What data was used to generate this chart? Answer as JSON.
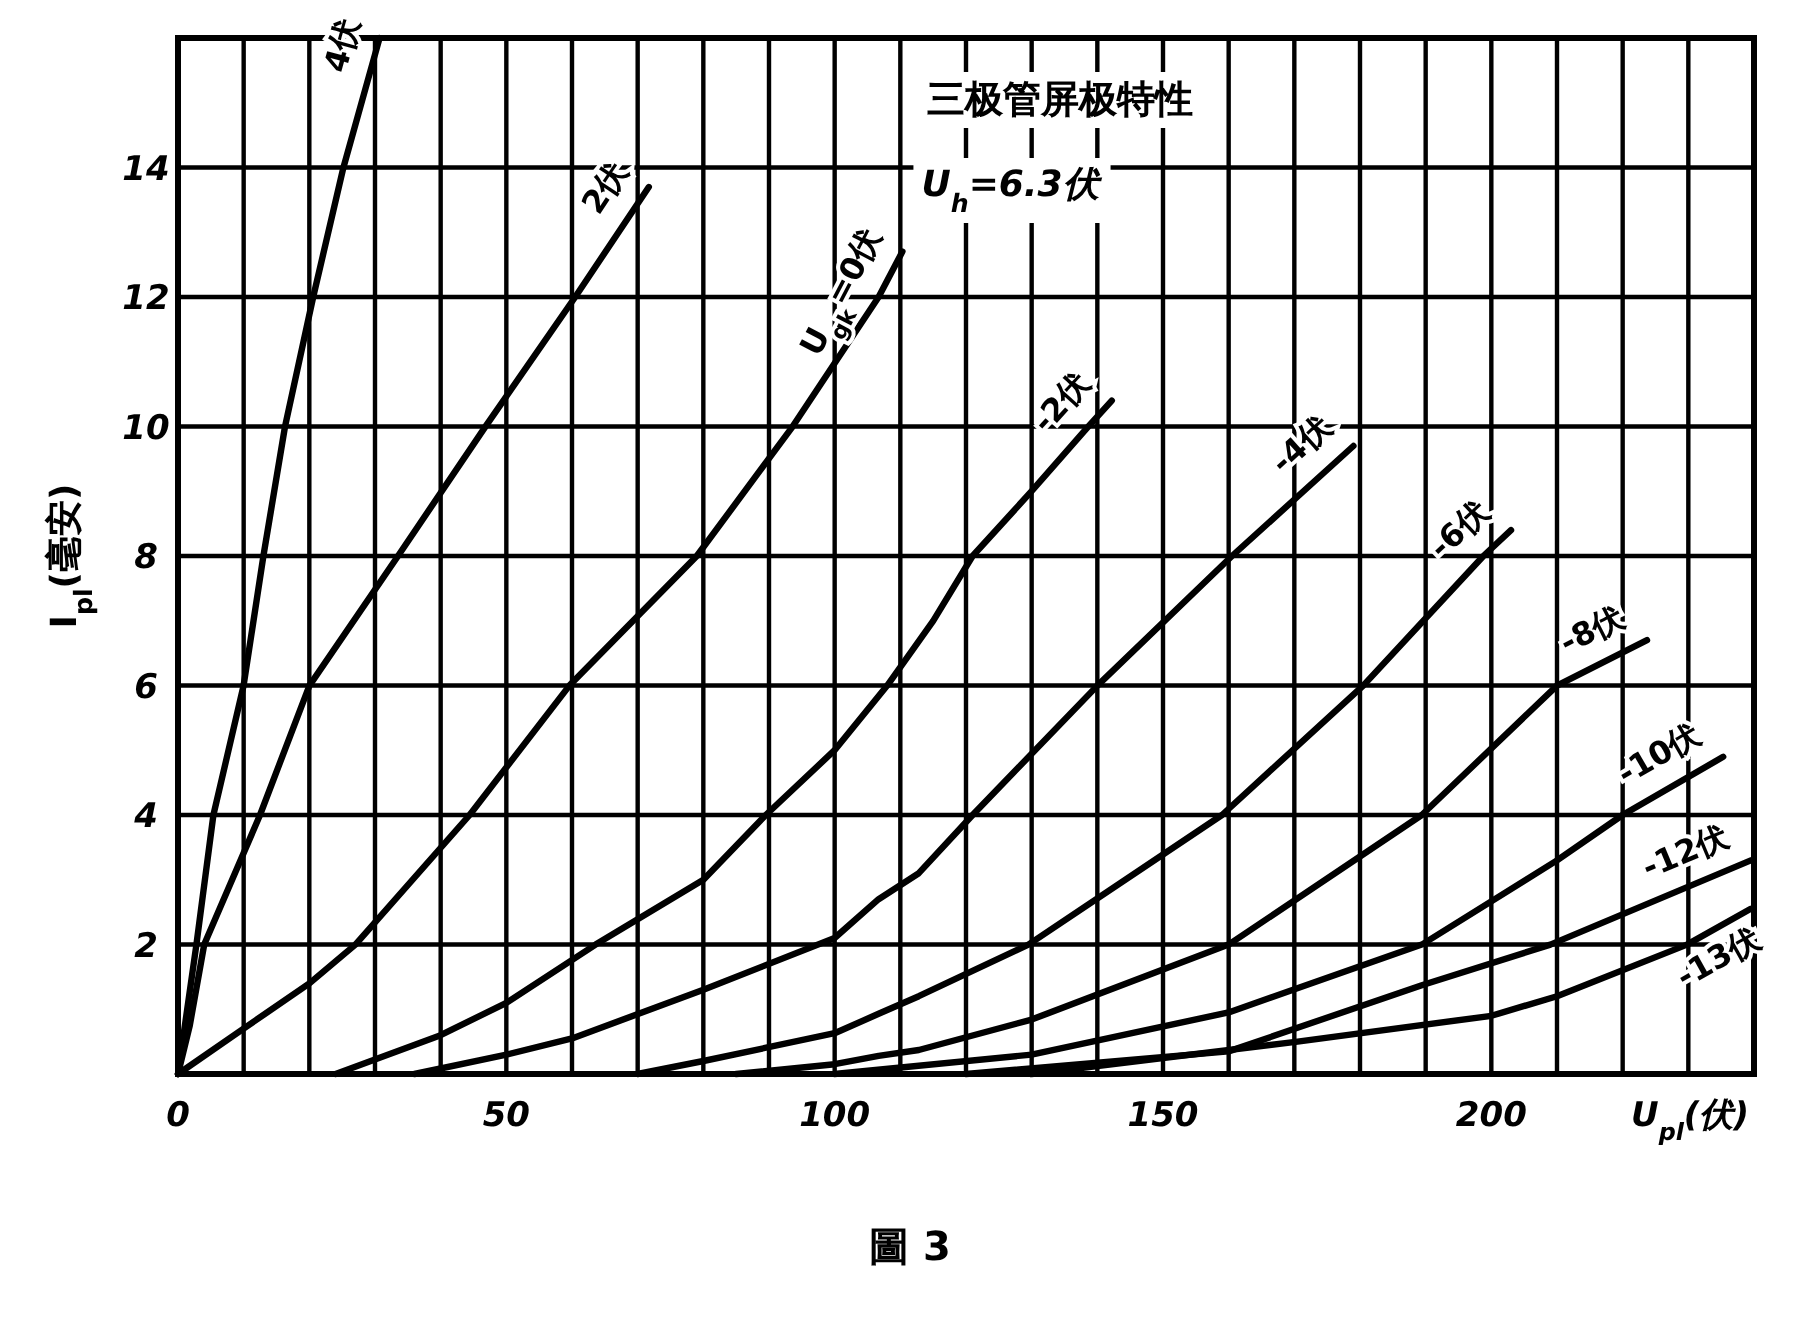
{
  "chart_data": {
    "type": "line",
    "title": "三极管屏极特性",
    "subtitle": "U$_{h}$=6.3伏",
    "xlabel": "U$_{pl}$(伏)",
    "ylabel": "I$_{pl}$(毫安)",
    "annotations": [
      "圖 3"
    ],
    "xlim": [
      0,
      240
    ],
    "xticks": [
      0,
      {
        "value": 10,
        "label": null
      },
      {
        "value": 20,
        "label": null
      },
      {
        "value": 30,
        "label": null
      },
      {
        "value": 40,
        "label": null
      },
      50,
      {
        "value": 60,
        "label": null
      },
      {
        "value": 70,
        "label": null
      },
      {
        "value": 80,
        "label": null
      },
      {
        "value": 90,
        "label": null
      },
      100,
      {
        "value": 110,
        "label": null
      },
      {
        "value": 120,
        "label": null
      },
      {
        "value": 130,
        "label": null
      },
      {
        "value": 140,
        "label": null
      },
      150,
      {
        "value": 160,
        "label": null
      },
      {
        "value": 170,
        "label": null
      },
      {
        "value": 180,
        "label": null
      },
      {
        "value": 190,
        "label": null
      },
      200,
      {
        "value": 210,
        "label": null
      },
      {
        "value": 220,
        "label": null
      },
      {
        "value": 230,
        "label": null
      },
      {
        "value": 240,
        "label": null
      }
    ],
    "ylim": [
      0,
      16
    ],
    "yticks": [
      {
        "value": 0,
        "label": null
      },
      2,
      4,
      6,
      8,
      10,
      12,
      14,
      {
        "value": 16,
        "label": null
      }
    ],
    "grid": true,
    "marker": "none",
    "line_style": "solid",
    "series": [
      {
        "name": "4伏",
        "color": "#000000",
        "x": [
          0,
          2.8,
          5.4,
          10,
          13,
          16.3,
          20.6,
          25.2,
          30.7
        ],
        "values": [
          0,
          2,
          4,
          6,
          8,
          10,
          12,
          14,
          16
        ]
      },
      {
        "name": "2伏",
        "color": "#000000",
        "x": [
          0,
          1.8,
          4,
          12.5,
          20,
          33.5,
          46.8,
          60.5,
          71.7
        ],
        "values": [
          0,
          0.75,
          2,
          4,
          6,
          8,
          10,
          12,
          13.7
        ]
      },
      {
        "name": "U$_{gk}$=0伏",
        "color": "#000000",
        "x": [
          0,
          10,
          20,
          27,
          44.4,
          59.6,
          79,
          93.6,
          106.7,
          110.3
        ],
        "values": [
          0,
          0.7,
          1.4,
          2,
          4,
          6,
          8,
          10,
          12,
          12.7
        ]
      },
      {
        "name": "-2伏",
        "color": "#000000",
        "x": [
          24,
          40,
          50,
          63.6,
          80,
          89.5,
          100,
          108,
          115,
          121,
          130,
          138.6,
          142.2
        ],
        "values": [
          0,
          0.6,
          1.1,
          2,
          3,
          4,
          5,
          6,
          7,
          8,
          9,
          10,
          10.4
        ]
      },
      {
        "name": "-4伏",
        "color": "#000000",
        "x": [
          36,
          50,
          60,
          80,
          100,
          106.7,
          112.8,
          121,
          140,
          160.5,
          179
        ],
        "values": [
          0,
          0.3,
          0.55,
          1.3,
          2.1,
          2.7,
          3.1,
          4,
          6,
          8,
          9.7
        ]
      },
      {
        "name": "-6伏",
        "color": "#000000",
        "x": [
          70,
          80,
          100,
          106.7,
          112.8,
          129.5,
          159,
          180.5,
          198.8,
          203
        ],
        "values": [
          0,
          0.2,
          0.63,
          0.93,
          1.2,
          2,
          4,
          6,
          8,
          8.4
        ]
      },
      {
        "name": "-8伏",
        "color": "#000000",
        "x": [
          85,
          100,
          106.7,
          112.8,
          130,
          160,
          189.4,
          210,
          223.7
        ],
        "values": [
          0,
          0.15,
          0.28,
          0.37,
          0.84,
          2,
          4,
          6,
          6.7
        ]
      },
      {
        "name": "-10伏",
        "color": "#000000",
        "x": [
          100,
          130,
          160,
          189.4,
          210,
          220,
          235.3
        ],
        "values": [
          0,
          0.3,
          0.95,
          2,
          3.3,
          4,
          4.9
        ]
      },
      {
        "name": "-12伏",
        "color": "#000000",
        "x": [
          120,
          160,
          189.4,
          209,
          239.5
        ],
        "values": [
          0,
          0.35,
          1.37,
          2,
          3.3
        ]
      },
      {
        "name": "-13伏",
        "color": "#000000",
        "x": [
          130,
          170.5,
          200,
          210,
          229.8,
          239.5
        ],
        "values": [
          0,
          0.5,
          0.9,
          1.2,
          2,
          2.55
        ]
      }
    ]
  }
}
